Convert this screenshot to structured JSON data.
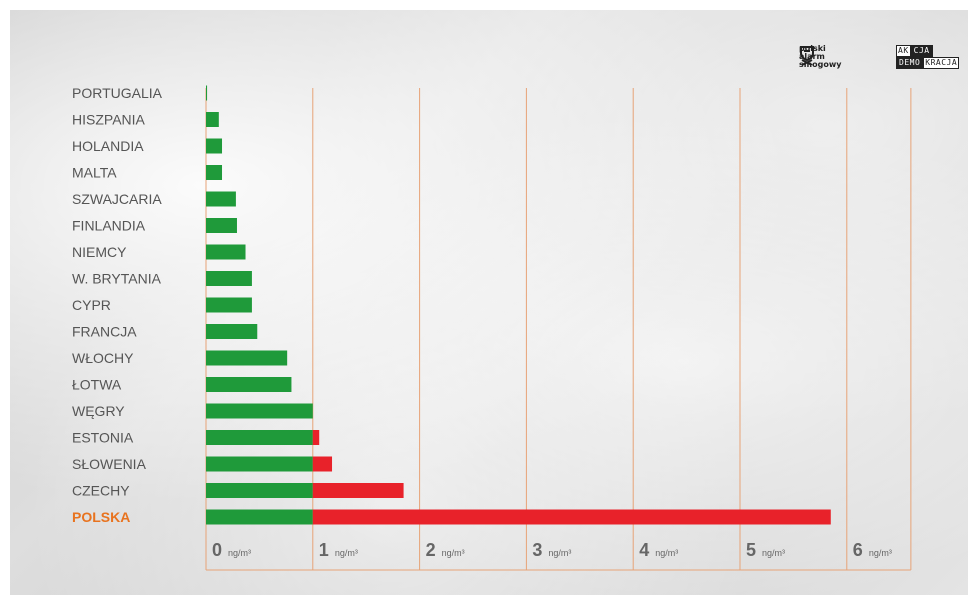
{
  "chart_data": {
    "type": "bar",
    "orientation": "horizontal",
    "categories": [
      "PORTUGALIA",
      "HISZPANIA",
      "HOLANDIA",
      "MALTA",
      "SZWAJCARIA",
      "FINLANDIA",
      "NIEMCY",
      "W. BRYTANIA",
      "CYPR",
      "FRANCJA",
      "WŁOCHY",
      "ŁOTWA",
      "WĘGRY",
      "ESTONIA",
      "SŁOWENIA",
      "CZECHY",
      "POLSKA"
    ],
    "values": [
      0.01,
      0.12,
      0.15,
      0.15,
      0.28,
      0.29,
      0.37,
      0.43,
      0.43,
      0.48,
      0.76,
      0.8,
      1.0,
      1.06,
      1.18,
      1.85,
      5.85
    ],
    "threshold": 1,
    "xlim": [
      0,
      6.6
    ],
    "xticks": [
      {
        "value": 0,
        "label": "0",
        "unit": "ng/m³"
      },
      {
        "value": 1,
        "label": "1",
        "unit": "ng/m³"
      },
      {
        "value": 2,
        "label": "2",
        "unit": "ng/m³"
      },
      {
        "value": 3,
        "label": "3",
        "unit": "ng/m³"
      },
      {
        "value": 4,
        "label": "4",
        "unit": "ng/m³"
      },
      {
        "value": 5,
        "label": "5",
        "unit": "ng/m³"
      },
      {
        "value": 6,
        "label": "6",
        "unit": "ng/m³"
      }
    ],
    "highlight_category": "POLSKA",
    "colors": {
      "below_threshold": "#1f9a3a",
      "above_threshold": "#e8222a",
      "gridline": "#e7a377",
      "label": "#555555",
      "highlight_label": "#e8731f"
    }
  },
  "logos": {
    "polski_alarm": {
      "lines": [
        "polski",
        "alarm",
        "smogowy"
      ],
      "icon": "shield-icon"
    },
    "akcja_demokracja": {
      "row1": [
        {
          "t": "AK",
          "style": "w"
        },
        {
          "t": "CJA",
          "style": "k"
        }
      ],
      "row2": [
        {
          "t": "DEMO",
          "style": "k"
        },
        {
          "t": "KRACJA",
          "style": "w"
        }
      ]
    }
  }
}
